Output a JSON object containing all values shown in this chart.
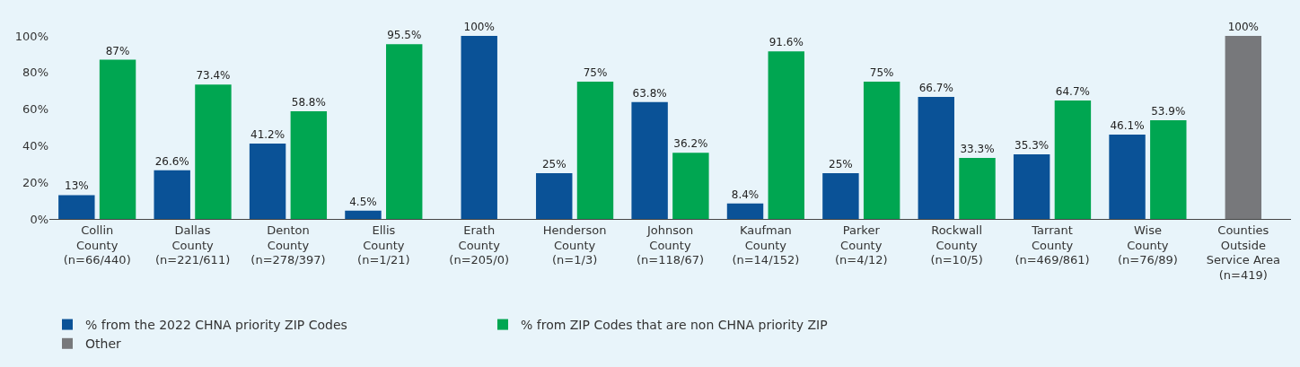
{
  "chart_data": {
    "type": "bar",
    "categories": [
      "Collin\nCounty\n(n=66/440)",
      "Dallas\nCounty\n(n=221/611)",
      "Denton\nCounty\n(n=278/397)",
      "Ellis\nCounty\n(n=1/21)",
      "Erath\nCounty\n(n=205/0)",
      "Henderson\nCounty\n(n=1/3)",
      "Johnson\nCounty\n(n=118/67)",
      "Kaufman\nCounty\n(n=14/152)",
      "Parker\nCounty\n(n=4/12)",
      "Rockwall\nCounty\n(n=10/5)",
      "Tarrant\nCounty\n(n=469/861)",
      "Wise\nCounty\n(n=76/89)",
      "Counties\nOutside\nService Area\n(n=419)"
    ],
    "series": [
      {
        "name": "% from the 2022 CHNA priority ZIP Codes",
        "color": "#0a5297",
        "values": [
          13,
          26.6,
          41.2,
          4.5,
          100,
          25,
          63.8,
          8.4,
          25,
          66.7,
          35.3,
          46.1,
          null
        ],
        "value_labels": [
          "13%",
          "26.6%",
          "41.2%",
          "4.5%",
          "100%",
          "25%",
          "63.8%",
          "8.4%",
          "25%",
          "66.7%",
          "35.3%",
          "46.1%",
          null
        ]
      },
      {
        "name": "% from ZIP Codes that are non CHNA priority ZIP",
        "color": "#00a651",
        "values": [
          87,
          73.4,
          58.8,
          95.5,
          null,
          75,
          36.2,
          91.6,
          75,
          33.3,
          64.7,
          53.9,
          null
        ],
        "value_labels": [
          "87%",
          "73.4%",
          "58.8%",
          "95.5%",
          null,
          "75%",
          "36.2%",
          "91.6%",
          "75%",
          "33.3%",
          "64.7%",
          "53.9%",
          null
        ]
      },
      {
        "name": "Other",
        "color": "#77787b",
        "values": [
          null,
          null,
          null,
          null,
          null,
          null,
          null,
          null,
          null,
          null,
          null,
          null,
          100
        ],
        "value_labels": [
          null,
          null,
          null,
          null,
          null,
          null,
          null,
          null,
          null,
          null,
          null,
          null,
          "100%"
        ]
      }
    ],
    "ylim": [
      0,
      100
    ],
    "yticks": [
      {
        "value": 0,
        "label": "0%"
      },
      {
        "value": 20,
        "label": "20%"
      },
      {
        "value": 40,
        "label": "40%"
      },
      {
        "value": 60,
        "label": "60%"
      },
      {
        "value": 80,
        "label": "80%"
      },
      {
        "value": 100,
        "label": "100%"
      }
    ],
    "grid": false,
    "legend": "bottom"
  }
}
